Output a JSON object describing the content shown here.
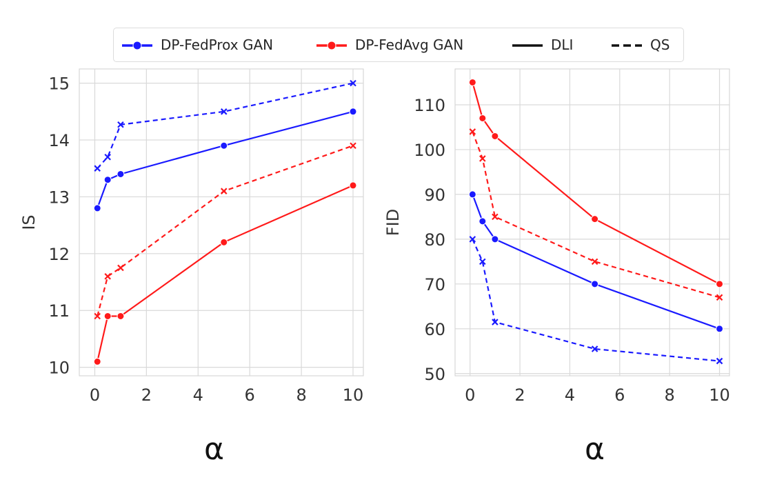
{
  "legend": {
    "items": [
      {
        "label": "DP-FedProx GAN",
        "color": "#1a1aff",
        "style": "line-marker"
      },
      {
        "label": "DP-FedAvg GAN",
        "color": "#ff1a1a",
        "style": "line-marker"
      },
      {
        "label": "DLI",
        "color": "#111111",
        "style": "solid"
      },
      {
        "label": "QS",
        "color": "#111111",
        "style": "dashed"
      }
    ]
  },
  "colors": {
    "fedprox": "#1a1aff",
    "fedavg": "#ff1a1a",
    "grid": "#d9d9d9",
    "axis_text": "#333333"
  },
  "xlabels": {
    "left": "α",
    "right": "α"
  },
  "chart_data": [
    {
      "type": "line",
      "title": "",
      "xlabel": "α",
      "ylabel": "IS",
      "xlim": [
        -0.6,
        10.4
      ],
      "ylim": [
        9.85,
        15.25
      ],
      "xticks": [
        0,
        2,
        4,
        6,
        8,
        10
      ],
      "yticks": [
        10,
        11,
        12,
        13,
        14,
        15
      ],
      "grid": true,
      "x": [
        0.1,
        0.5,
        1,
        5,
        10
      ],
      "series": [
        {
          "name": "DP-FedProx GAN",
          "variant": "DLI",
          "color": "#1a1aff",
          "dash": false,
          "marker": "circle",
          "values": [
            12.8,
            13.3,
            13.4,
            13.9,
            14.5
          ]
        },
        {
          "name": "DP-FedProx GAN",
          "variant": "QS",
          "color": "#1a1aff",
          "dash": true,
          "marker": "x",
          "values": [
            13.5,
            13.7,
            14.27,
            14.5,
            15.0
          ]
        },
        {
          "name": "DP-FedAvg GAN",
          "variant": "DLI",
          "color": "#ff1a1a",
          "dash": false,
          "marker": "circle",
          "values": [
            10.1,
            10.9,
            10.9,
            12.2,
            13.2
          ]
        },
        {
          "name": "DP-FedAvg GAN",
          "variant": "QS",
          "color": "#ff1a1a",
          "dash": true,
          "marker": "x",
          "values": [
            10.9,
            11.6,
            11.75,
            13.1,
            13.9
          ]
        }
      ]
    },
    {
      "type": "line",
      "title": "",
      "xlabel": "α",
      "ylabel": "FID",
      "xlim": [
        -0.6,
        10.4
      ],
      "ylim": [
        49.5,
        118
      ],
      "xticks": [
        0,
        2,
        4,
        6,
        8,
        10
      ],
      "yticks": [
        50,
        60,
        70,
        80,
        90,
        100,
        110
      ],
      "grid": true,
      "x": [
        0.1,
        0.5,
        1,
        5,
        10
      ],
      "series": [
        {
          "name": "DP-FedProx GAN",
          "variant": "DLI",
          "color": "#1a1aff",
          "dash": false,
          "marker": "circle",
          "values": [
            90,
            84,
            80,
            70,
            60
          ]
        },
        {
          "name": "DP-FedProx GAN",
          "variant": "QS",
          "color": "#1a1aff",
          "dash": true,
          "marker": "x",
          "values": [
            80,
            75,
            61.5,
            55.5,
            52.8
          ]
        },
        {
          "name": "DP-FedAvg GAN",
          "variant": "DLI",
          "color": "#ff1a1a",
          "dash": false,
          "marker": "circle",
          "values": [
            115,
            107,
            103,
            84.5,
            70
          ]
        },
        {
          "name": "DP-FedAvg GAN",
          "variant": "QS",
          "color": "#ff1a1a",
          "dash": true,
          "marker": "x",
          "values": [
            104,
            98,
            85,
            75,
            67
          ]
        }
      ]
    }
  ]
}
